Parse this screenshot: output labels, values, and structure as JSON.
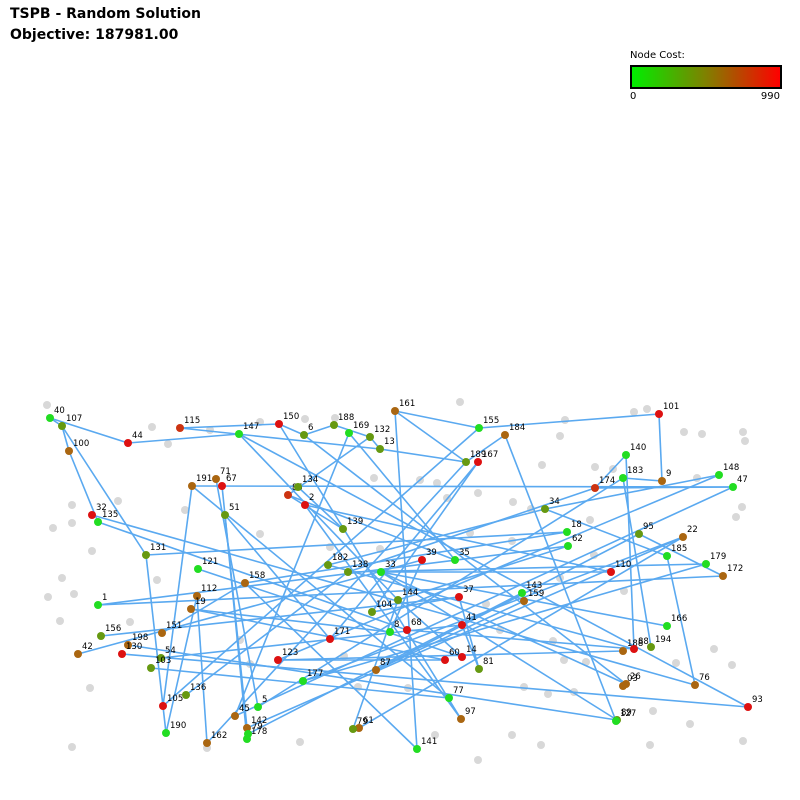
{
  "header": {
    "title": "TSPB - Random Solution",
    "objective_label": "Objective:",
    "objective_value": "187981.00"
  },
  "legend": {
    "label": "Node Cost:",
    "min": "0",
    "max": "990",
    "colors": [
      "#00ee00",
      "#808000",
      "#ff0000"
    ]
  },
  "colors": {
    "edge": "#5aa9f0",
    "unvisited": "#d8d8d8"
  }
}
